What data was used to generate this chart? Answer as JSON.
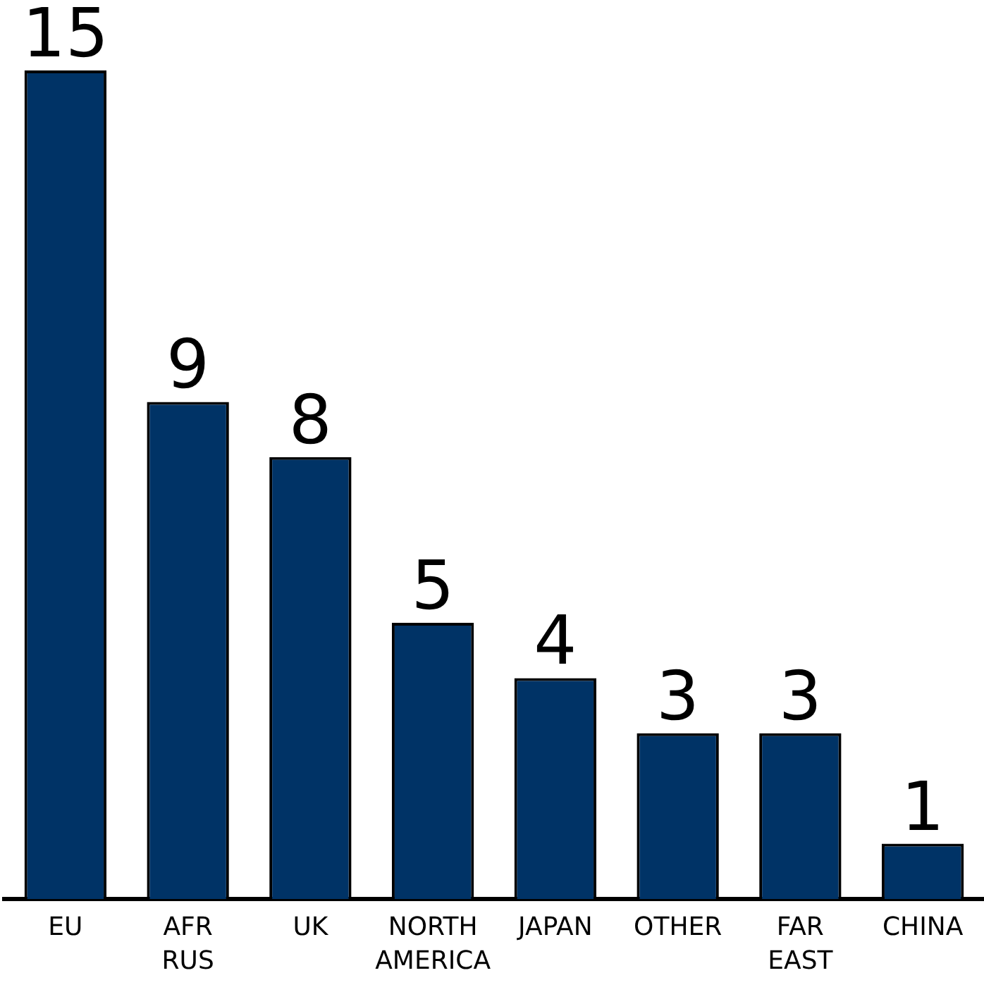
{
  "chart_data": {
    "type": "bar",
    "categories": [
      "EU",
      "AFR RUS",
      "UK",
      "NORTH AMERICA",
      "JAPAN",
      "OTHER",
      "FAR EAST",
      "CHINA"
    ],
    "values": [
      15,
      9,
      8,
      5,
      4,
      3,
      3,
      1
    ],
    "color": "#003366",
    "data_labels": true,
    "tick_labels": "x"
  }
}
